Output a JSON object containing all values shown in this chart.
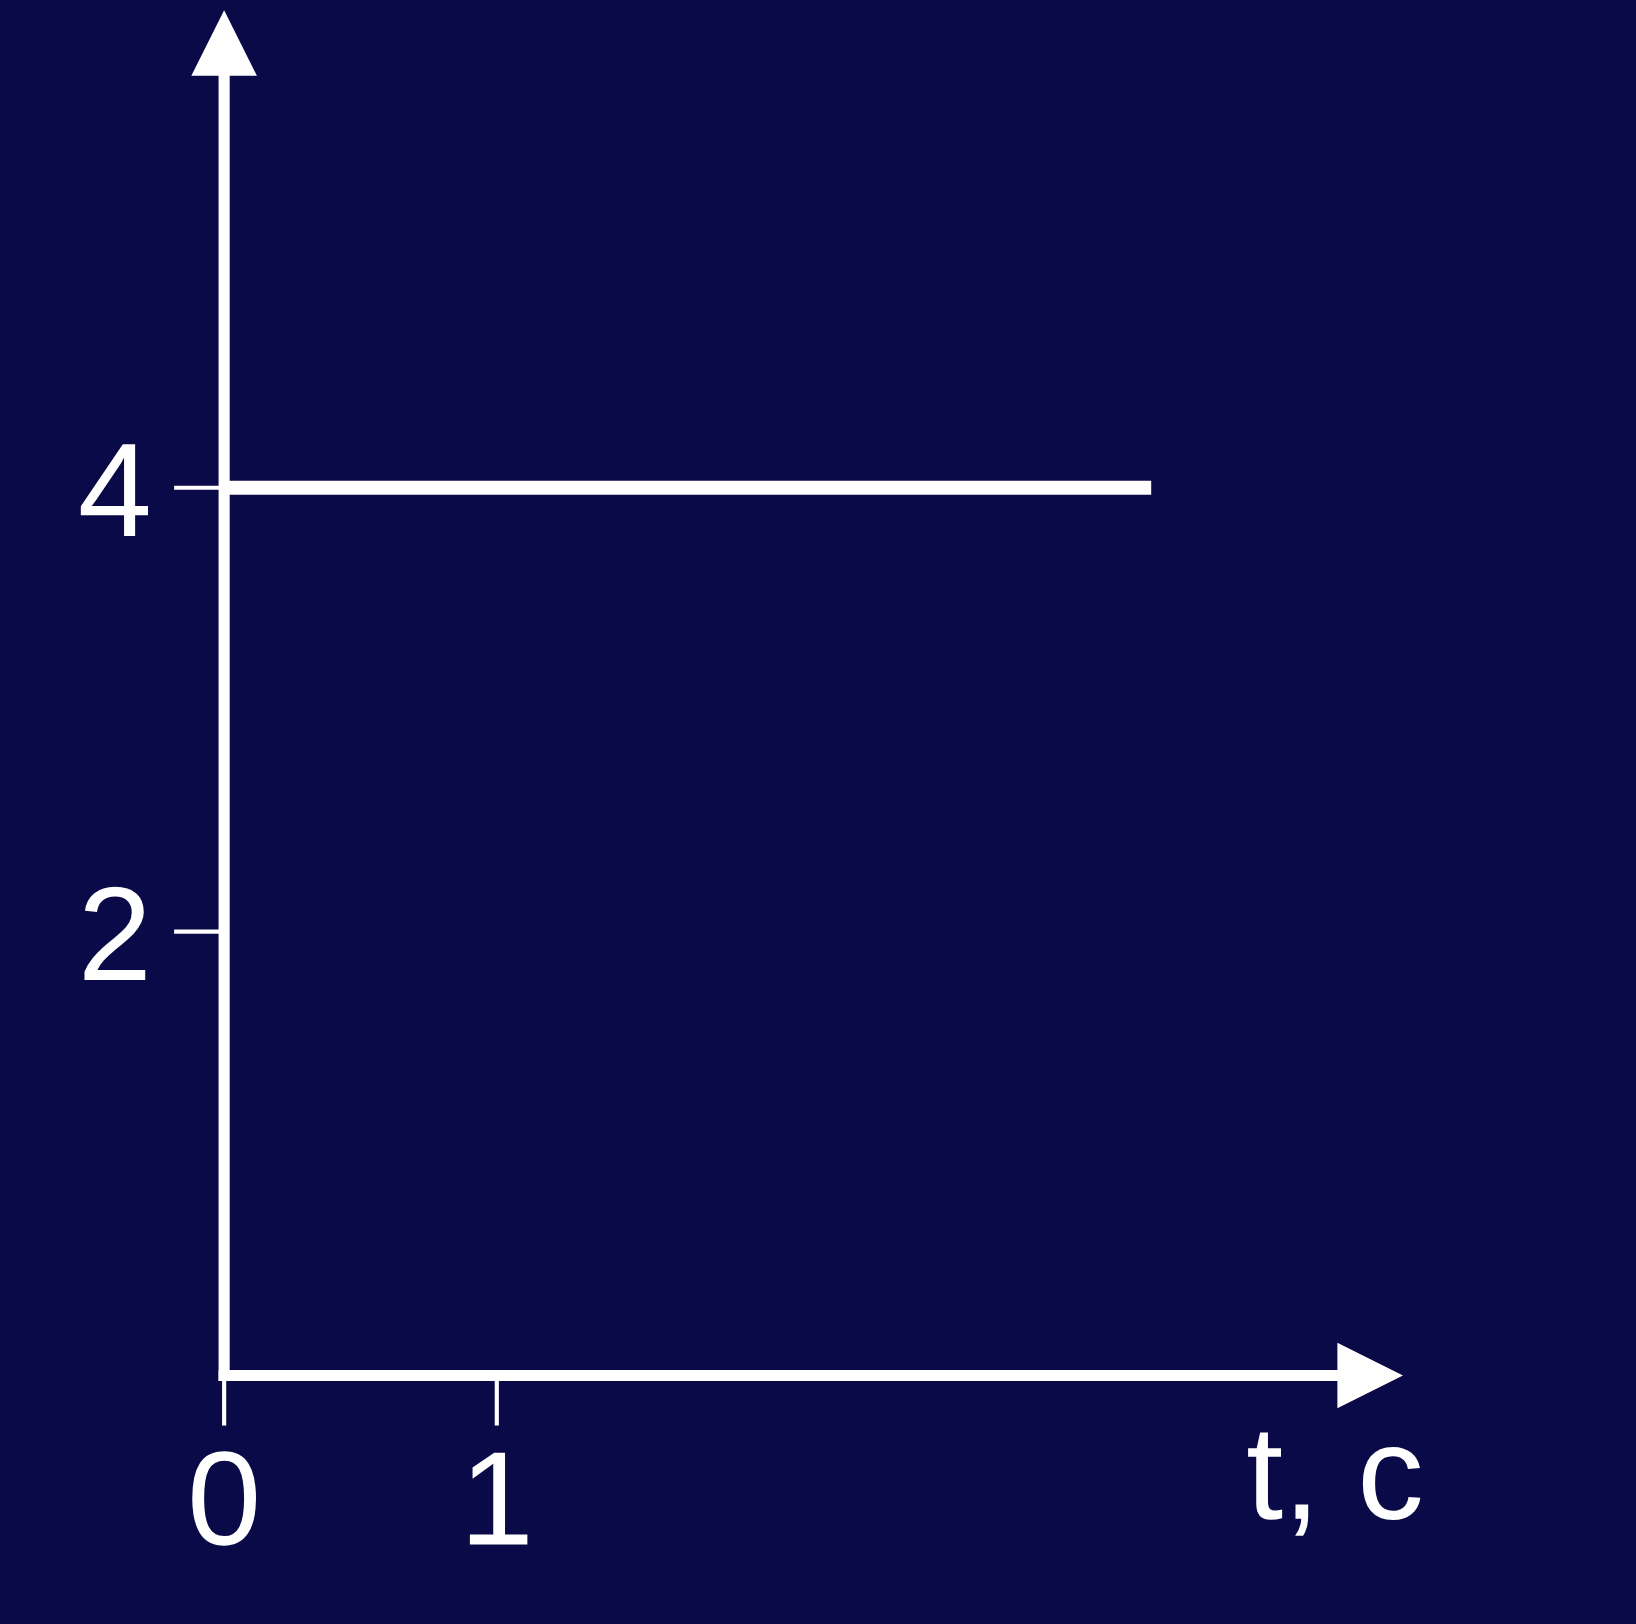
{
  "chart_data": {
    "type": "line",
    "xlabel": "t, c",
    "series": [
      {
        "color": "#ffffff",
        "x": [
          0,
          3.4
        ],
        "values": [
          4,
          4
        ]
      }
    ],
    "xlim": [
      0,
      4.2
    ],
    "ylim": [
      0,
      6
    ],
    "xticks": [
      0,
      1
    ],
    "yticks": [
      2,
      4
    ],
    "grid": false,
    "legend": false,
    "marker": "none",
    "line_style": "solid"
  }
}
